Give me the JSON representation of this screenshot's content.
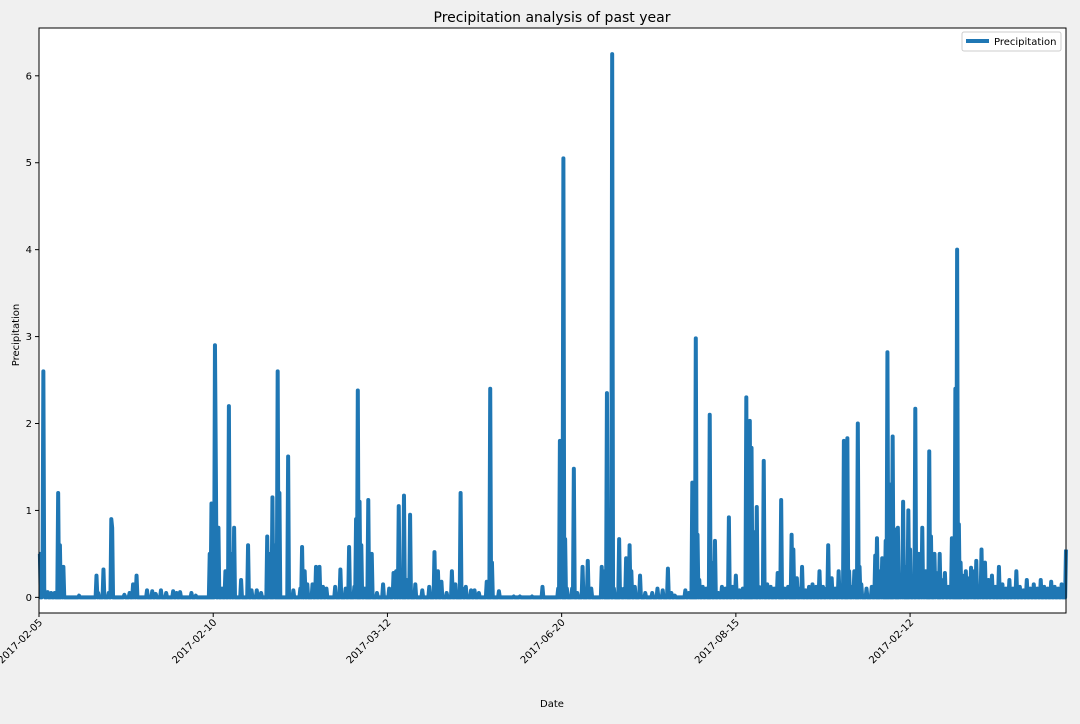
{
  "chart_data": {
    "type": "line",
    "title": "Precipitation analysis of past year",
    "xlabel": "Date",
    "ylabel": "Precipitation",
    "ylim": [
      -0.18,
      6.55
    ],
    "yticks": [
      0,
      1,
      2,
      3,
      4,
      5,
      6
    ],
    "xtick_labels": [
      "2017-02-05",
      "2017-02-10",
      "2017-03-12",
      "2017-06-20",
      "2017-08-15",
      "2017-02-12"
    ],
    "xtick_index": [
      0,
      200,
      400,
      600,
      800,
      1000
    ],
    "x_count": 1180,
    "legend": {
      "labels": [
        "Precipitation"
      ],
      "location": "upper right"
    },
    "colors": {
      "series": "#1f77b4",
      "background": "#f0f0f0",
      "plot_bg": "#ffffff",
      "axis": "#000000"
    },
    "series": [
      {
        "name": "Precipitation",
        "description": "Approximate daily precipitation values read from the figure; unlisted indices are 0.",
        "peaks": [
          [
            0,
            0.5
          ],
          [
            1,
            0.5
          ],
          [
            4,
            0.1
          ],
          [
            5,
            2.6
          ],
          [
            6,
            0.1
          ],
          [
            8,
            0.05
          ],
          [
            10,
            0.06
          ],
          [
            14,
            0.05
          ],
          [
            18,
            0.05
          ],
          [
            22,
            1.2
          ],
          [
            24,
            0.6
          ],
          [
            26,
            0.3
          ],
          [
            28,
            0.35
          ],
          [
            46,
            0.02
          ],
          [
            66,
            0.25
          ],
          [
            68,
            0.05
          ],
          [
            74,
            0.32
          ],
          [
            80,
            0.05
          ],
          [
            83,
            0.9
          ],
          [
            84,
            0.8
          ],
          [
            98,
            0.03
          ],
          [
            104,
            0.05
          ],
          [
            108,
            0.15
          ],
          [
            110,
            0.1
          ],
          [
            112,
            0.25
          ],
          [
            124,
            0.08
          ],
          [
            130,
            0.07
          ],
          [
            134,
            0.04
          ],
          [
            140,
            0.08
          ],
          [
            146,
            0.05
          ],
          [
            154,
            0.07
          ],
          [
            158,
            0.05
          ],
          [
            162,
            0.06
          ],
          [
            175,
            0.05
          ],
          [
            180,
            0.02
          ],
          [
            196,
            0.5
          ],
          [
            198,
            1.08
          ],
          [
            200,
            0.9
          ],
          [
            202,
            2.9
          ],
          [
            203,
            1.5
          ],
          [
            206,
            0.8
          ],
          [
            210,
            0.1
          ],
          [
            214,
            0.3
          ],
          [
            218,
            2.2
          ],
          [
            221,
            0.5
          ],
          [
            224,
            0.8
          ],
          [
            232,
            0.2
          ],
          [
            240,
            0.6
          ],
          [
            244,
            0.08
          ],
          [
            250,
            0.08
          ],
          [
            255,
            0.05
          ],
          [
            262,
            0.7
          ],
          [
            264,
            0.5
          ],
          [
            268,
            1.15
          ],
          [
            270,
            0.6
          ],
          [
            274,
            2.6
          ],
          [
            276,
            1.2
          ],
          [
            286,
            1.62
          ],
          [
            292,
            0.08
          ],
          [
            300,
            0.1
          ],
          [
            302,
            0.58
          ],
          [
            305,
            0.3
          ],
          [
            308,
            0.15
          ],
          [
            314,
            0.15
          ],
          [
            318,
            0.35
          ],
          [
            322,
            0.35
          ],
          [
            326,
            0.12
          ],
          [
            330,
            0.1
          ],
          [
            340,
            0.12
          ],
          [
            346,
            0.32
          ],
          [
            352,
            0.1
          ],
          [
            356,
            0.58
          ],
          [
            362,
            0.12
          ],
          [
            364,
            0.9
          ],
          [
            366,
            2.38
          ],
          [
            368,
            1.1
          ],
          [
            370,
            0.6
          ],
          [
            374,
            0.1
          ],
          [
            378,
            1.12
          ],
          [
            382,
            0.5
          ],
          [
            388,
            0.05
          ],
          [
            395,
            0.15
          ],
          [
            402,
            0.1
          ],
          [
            407,
            0.28
          ],
          [
            410,
            0.3
          ],
          [
            413,
            1.05
          ],
          [
            416,
            0.3
          ],
          [
            419,
            1.17
          ],
          [
            422,
            0.2
          ],
          [
            426,
            0.95
          ],
          [
            432,
            0.15
          ],
          [
            440,
            0.08
          ],
          [
            448,
            0.12
          ],
          [
            454,
            0.52
          ],
          [
            458,
            0.3
          ],
          [
            462,
            0.18
          ],
          [
            468,
            0.05
          ],
          [
            474,
            0.3
          ],
          [
            478,
            0.15
          ],
          [
            484,
            1.2
          ],
          [
            486,
            0.1
          ],
          [
            490,
            0.12
          ],
          [
            496,
            0.08
          ],
          [
            500,
            0.08
          ],
          [
            505,
            0.05
          ],
          [
            514,
            0.18
          ],
          [
            518,
            2.4
          ],
          [
            520,
            0.4
          ],
          [
            528,
            0.07
          ],
          [
            545,
            0.01
          ],
          [
            552,
            0.01
          ],
          [
            566,
            0.01
          ],
          [
            578,
            0.12
          ],
          [
            596,
            0.1
          ],
          [
            598,
            1.8
          ],
          [
            600,
            0.3
          ],
          [
            602,
            5.05
          ],
          [
            604,
            0.67
          ],
          [
            606,
            0.1
          ],
          [
            612,
            0.1
          ],
          [
            614,
            1.48
          ],
          [
            618,
            0.05
          ],
          [
            624,
            0.35
          ],
          [
            630,
            0.42
          ],
          [
            634,
            0.1
          ],
          [
            646,
            0.35
          ],
          [
            648,
            0.3
          ],
          [
            652,
            2.35
          ],
          [
            656,
            0.35
          ],
          [
            658,
            6.25
          ],
          [
            660,
            0.1
          ],
          [
            666,
            0.67
          ],
          [
            668,
            0.1
          ],
          [
            672,
            0.1
          ],
          [
            674,
            0.45
          ],
          [
            678,
            0.6
          ],
          [
            680,
            0.3
          ],
          [
            684,
            0.12
          ],
          [
            690,
            0.25
          ],
          [
            696,
            0.05
          ],
          [
            704,
            0.05
          ],
          [
            710,
            0.1
          ],
          [
            716,
            0.08
          ],
          [
            722,
            0.33
          ],
          [
            726,
            0.05
          ],
          [
            730,
            0.02
          ],
          [
            742,
            0.08
          ],
          [
            746,
            0.05
          ],
          [
            750,
            1.32
          ],
          [
            752,
            0.5
          ],
          [
            754,
            2.98
          ],
          [
            756,
            0.72
          ],
          [
            758,
            0.2
          ],
          [
            762,
            0.12
          ],
          [
            766,
            0.1
          ],
          [
            770,
            2.1
          ],
          [
            772,
            0.4
          ],
          [
            776,
            0.65
          ],
          [
            780,
            0.05
          ],
          [
            784,
            0.12
          ],
          [
            788,
            0.1
          ],
          [
            792,
            0.92
          ],
          [
            796,
            0.12
          ],
          [
            800,
            0.25
          ],
          [
            804,
            0.08
          ],
          [
            808,
            0.1
          ],
          [
            812,
            2.3
          ],
          [
            814,
            1.2
          ],
          [
            816,
            2.03
          ],
          [
            818,
            1.72
          ],
          [
            820,
            0.12
          ],
          [
            822,
            0.75
          ],
          [
            824,
            1.04
          ],
          [
            826,
            0.12
          ],
          [
            830,
            0.12
          ],
          [
            832,
            1.57
          ],
          [
            836,
            0.15
          ],
          [
            840,
            0.12
          ],
          [
            844,
            0.1
          ],
          [
            848,
            0.28
          ],
          [
            852,
            1.12
          ],
          [
            856,
            0.1
          ],
          [
            860,
            0.12
          ],
          [
            864,
            0.72
          ],
          [
            866,
            0.55
          ],
          [
            870,
            0.22
          ],
          [
            874,
            0.1
          ],
          [
            876,
            0.35
          ],
          [
            880,
            0.08
          ],
          [
            884,
            0.12
          ],
          [
            888,
            0.15
          ],
          [
            892,
            0.12
          ],
          [
            896,
            0.3
          ],
          [
            900,
            0.12
          ],
          [
            904,
            0.1
          ],
          [
            906,
            0.6
          ],
          [
            910,
            0.22
          ],
          [
            914,
            0.1
          ],
          [
            918,
            0.3
          ],
          [
            920,
            0.1
          ],
          [
            924,
            1.8
          ],
          [
            928,
            1.83
          ],
          [
            930,
            0.3
          ],
          [
            934,
            0.12
          ],
          [
            936,
            0.3
          ],
          [
            940,
            2.0
          ],
          [
            942,
            0.35
          ],
          [
            944,
            0.15
          ],
          [
            950,
            0.1
          ],
          [
            956,
            0.12
          ],
          [
            960,
            0.48
          ],
          [
            962,
            0.68
          ],
          [
            966,
            0.3
          ],
          [
            968,
            0.45
          ],
          [
            972,
            0.65
          ],
          [
            974,
            2.82
          ],
          [
            976,
            1.3
          ],
          [
            978,
            0.5
          ],
          [
            980,
            1.85
          ],
          [
            982,
            0.3
          ],
          [
            984,
            0.78
          ],
          [
            986,
            0.8
          ],
          [
            988,
            0.2
          ],
          [
            990,
            0.12
          ],
          [
            992,
            1.1
          ],
          [
            994,
            0.35
          ],
          [
            996,
            0.2
          ],
          [
            998,
            1.0
          ],
          [
            1000,
            0.55
          ],
          [
            1004,
            0.2
          ],
          [
            1006,
            2.17
          ],
          [
            1008,
            0.3
          ],
          [
            1010,
            0.5
          ],
          [
            1012,
            0.12
          ],
          [
            1014,
            0.8
          ],
          [
            1016,
            0.12
          ],
          [
            1018,
            0.3
          ],
          [
            1022,
            1.68
          ],
          [
            1024,
            0.7
          ],
          [
            1028,
            0.5
          ],
          [
            1030,
            0.28
          ],
          [
            1034,
            0.5
          ],
          [
            1036,
            0.2
          ],
          [
            1040,
            0.28
          ],
          [
            1044,
            0.12
          ],
          [
            1048,
            0.68
          ],
          [
            1052,
            2.4
          ],
          [
            1054,
            4.0
          ],
          [
            1056,
            0.84
          ],
          [
            1058,
            0.4
          ],
          [
            1060,
            0.25
          ],
          [
            1064,
            0.3
          ],
          [
            1068,
            0.22
          ],
          [
            1070,
            0.34
          ],
          [
            1072,
            0.3
          ],
          [
            1076,
            0.42
          ],
          [
            1080,
            0.1
          ],
          [
            1082,
            0.55
          ],
          [
            1086,
            0.4
          ],
          [
            1090,
            0.2
          ],
          [
            1094,
            0.25
          ],
          [
            1098,
            0.12
          ],
          [
            1102,
            0.35
          ],
          [
            1106,
            0.15
          ],
          [
            1110,
            0.1
          ],
          [
            1114,
            0.2
          ],
          [
            1118,
            0.1
          ],
          [
            1122,
            0.3
          ],
          [
            1126,
            0.12
          ],
          [
            1130,
            0.08
          ],
          [
            1134,
            0.2
          ],
          [
            1138,
            0.1
          ],
          [
            1142,
            0.15
          ],
          [
            1146,
            0.1
          ],
          [
            1150,
            0.2
          ],
          [
            1154,
            0.12
          ],
          [
            1158,
            0.1
          ],
          [
            1162,
            0.18
          ],
          [
            1166,
            0.12
          ],
          [
            1170,
            0.1
          ],
          [
            1174,
            0.15
          ],
          [
            1179,
            0.55
          ]
        ]
      }
    ]
  }
}
